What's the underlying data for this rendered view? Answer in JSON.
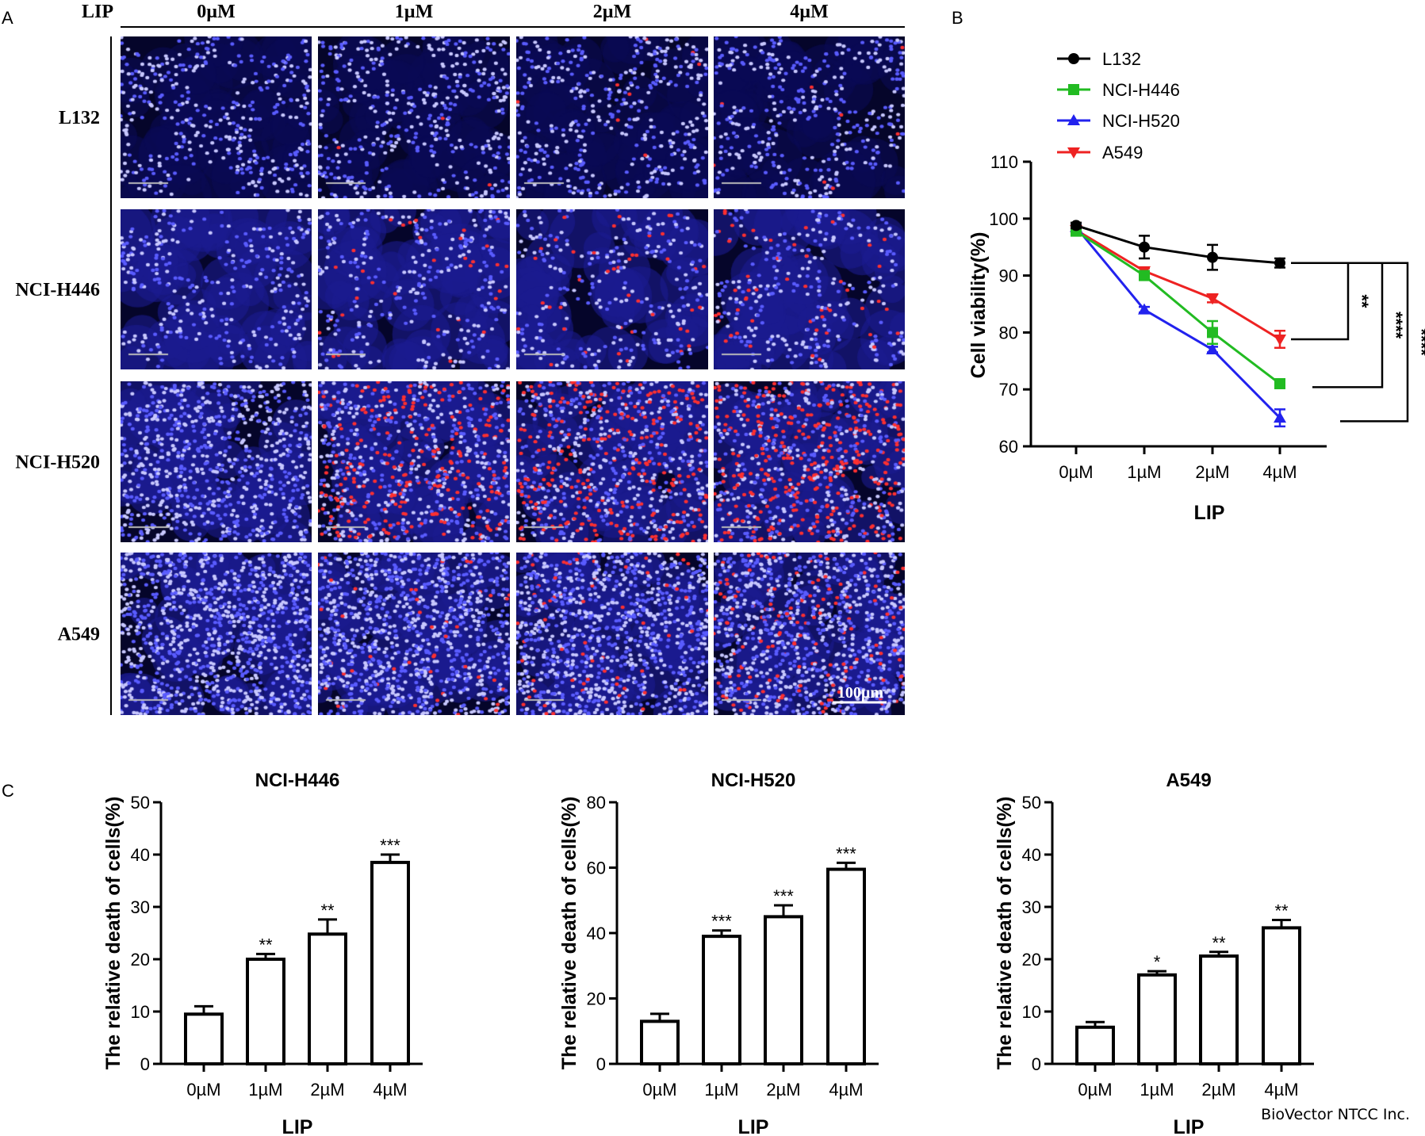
{
  "panel_labels": {
    "a": "A",
    "b": "B",
    "c": "C"
  },
  "panel_a": {
    "header_label": "LIP",
    "columns": [
      "0µM",
      "1µM",
      "2µM",
      "4µM"
    ],
    "rows": [
      "L132",
      "NCI-H446",
      "NCI-H520",
      "A549"
    ],
    "scale_bar_label": "100µm",
    "colors": {
      "nuclei": "#3a3cff",
      "dead": "#ff2020",
      "background": "#05052a"
    }
  },
  "watermark": "BioVector NTCC Inc.",
  "chart_data": [
    {
      "type": "line",
      "panel": "B",
      "categories": [
        "0µM",
        "1µM",
        "2µM",
        "4µM"
      ],
      "xlabel": "LIP",
      "ylabel": "Cell viability(%)",
      "ylim": [
        60,
        110
      ],
      "yticks": [
        60,
        70,
        80,
        90,
        100,
        110
      ],
      "legend_position": "top-left",
      "grid": false,
      "series": [
        {
          "name": "L132",
          "color": "#000000",
          "marker": "circle",
          "values": [
            98.8,
            95.0,
            93.2,
            92.2
          ],
          "errors": [
            0.5,
            2.0,
            2.2,
            0.8
          ]
        },
        {
          "name": "NCI-H446",
          "color": "#22bb22",
          "marker": "square",
          "values": [
            97.8,
            90.0,
            80.0,
            71.0
          ],
          "errors": [
            0.5,
            0.6,
            2.0,
            0.8
          ]
        },
        {
          "name": "NCI-H520",
          "color": "#2222ee",
          "marker": "triangle-up",
          "values": [
            98.5,
            84.0,
            77.0,
            65.0
          ],
          "errors": [
            0.5,
            0.5,
            0.5,
            1.5
          ]
        },
        {
          "name": "A549",
          "color": "#ee2222",
          "marker": "triangle-down",
          "values": [
            98.0,
            90.8,
            86.0,
            78.8
          ],
          "errors": [
            0.5,
            0.5,
            0.7,
            1.5
          ]
        }
      ],
      "significance": [
        {
          "from": "L132",
          "to": "A549",
          "label": "**"
        },
        {
          "from": "L132",
          "to": "NCI-H446",
          "label": "****"
        },
        {
          "from": "L132",
          "to": "NCI-H520",
          "label": "****"
        }
      ]
    },
    {
      "type": "bar",
      "panel": "C",
      "title": "NCI-H446",
      "categories": [
        "0µM",
        "1µM",
        "2µM",
        "4µM"
      ],
      "values": [
        9.5,
        20.0,
        24.8,
        38.5
      ],
      "errors": [
        1.5,
        1.0,
        2.8,
        1.5
      ],
      "significance": [
        "",
        "**",
        "**",
        "***"
      ],
      "xlabel": "LIP",
      "ylabel": "The relative death of cells(%)",
      "ylim": [
        0,
        50
      ],
      "yticks": [
        0,
        10,
        20,
        30,
        40,
        50
      ]
    },
    {
      "type": "bar",
      "panel": "C",
      "title": "NCI-H520",
      "categories": [
        "0µM",
        "1µM",
        "2µM",
        "4µM"
      ],
      "values": [
        13.0,
        39.0,
        45.0,
        59.5
      ],
      "errors": [
        2.3,
        1.8,
        3.5,
        2.0
      ],
      "significance": [
        "",
        "***",
        "***",
        "***"
      ],
      "xlabel": "LIP",
      "ylabel": "The relative death of cells(%)",
      "ylim": [
        0,
        80
      ],
      "yticks": [
        0,
        20,
        40,
        60,
        80
      ]
    },
    {
      "type": "bar",
      "panel": "C",
      "title": "A549",
      "categories": [
        "0µM",
        "1µM",
        "2µM",
        "4µM"
      ],
      "values": [
        7.0,
        17.0,
        20.6,
        26.0
      ],
      "errors": [
        1.0,
        0.7,
        0.8,
        1.5
      ],
      "significance": [
        "",
        "*",
        "**",
        "**"
      ],
      "xlabel": "LIP",
      "ylabel": "The relative death of cells(%)",
      "ylim": [
        0,
        50
      ],
      "yticks": [
        0,
        10,
        20,
        30,
        40,
        50
      ]
    }
  ]
}
